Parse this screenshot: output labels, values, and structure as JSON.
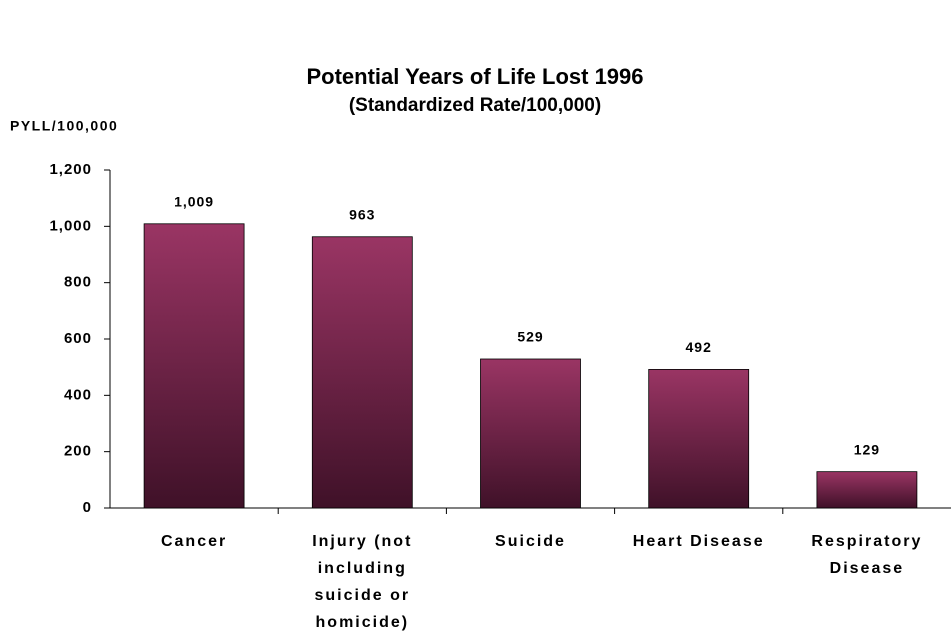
{
  "chart_data": {
    "type": "bar",
    "title": "Potential Years of Life Lost 1996",
    "subtitle": "(Standardized Rate/100,000)",
    "y_axis_label": "PYLL/100,000",
    "categories": [
      "Cancer",
      "Injury (not including suicide or homicide)",
      "Suicide",
      "Heart Disease",
      "Respiratory Disease"
    ],
    "values": [
      1009,
      963,
      529,
      492,
      129
    ],
    "value_labels": [
      "1,009",
      "963",
      "529",
      "492",
      "129"
    ],
    "color": "#9a3564",
    "ylim": [
      0,
      1200
    ],
    "yticks": [
      0,
      200,
      400,
      600,
      800,
      {
        "value": 1000,
        "label": "1,000"
      },
      {
        "value": 1200,
        "label": "1,200"
      }
    ],
    "grid": false
  }
}
